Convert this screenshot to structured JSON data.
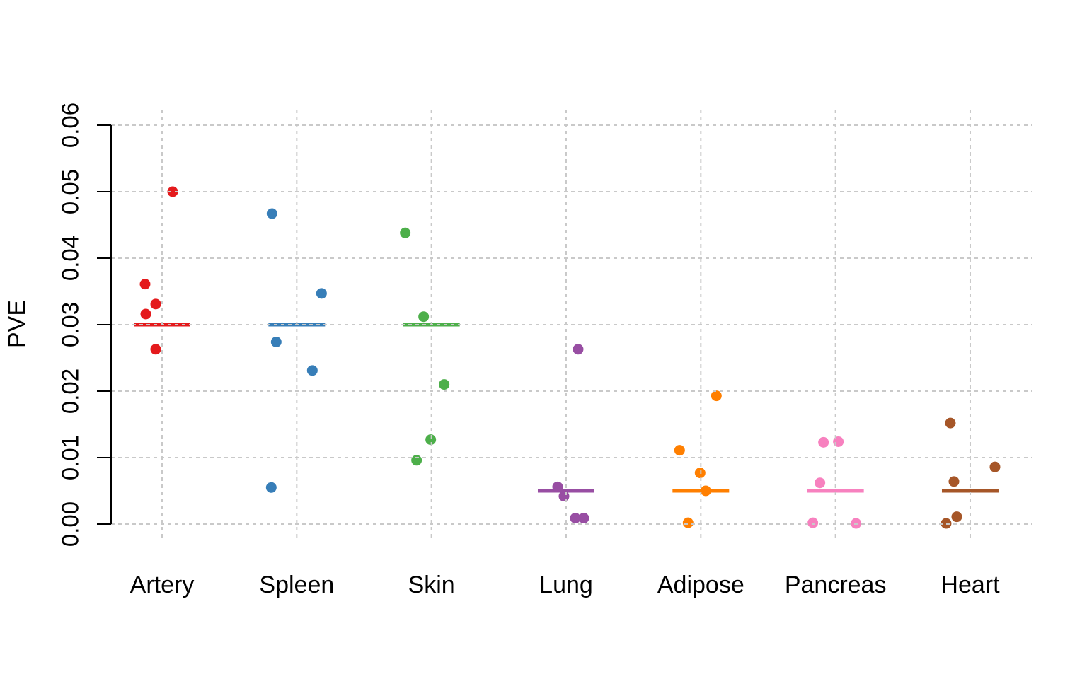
{
  "chart_data": {
    "type": "scatter",
    "subtype": "strip-chart",
    "title": "",
    "xlabel": "",
    "ylabel": "PVE",
    "ylim": [
      0,
      0.06
    ],
    "yticks": [
      0,
      0.01,
      0.02,
      0.03,
      0.04,
      0.05,
      0.06
    ],
    "ytick_labels": [
      "0.00",
      "0.01",
      "0.02",
      "0.03",
      "0.04",
      "0.05",
      "0.06"
    ],
    "grid": true,
    "grid_style": "dashed",
    "grid_color": "#c9c9c9",
    "axis_color": "#000000",
    "legend": "none",
    "categories": [
      "Artery",
      "Spleen",
      "Skin",
      "Lung",
      "Adipose",
      "Pancreas",
      "Heart"
    ],
    "series": [
      {
        "name": "Artery",
        "color": "#e41a1c",
        "line_value": 0.03,
        "points": [
          {
            "value": 0.05,
            "dx": 15
          },
          {
            "value": 0.0361,
            "dx": -24
          },
          {
            "value": 0.0331,
            "dx": -9
          },
          {
            "value": 0.0316,
            "dx": -23
          },
          {
            "value": 0.0263,
            "dx": -9
          }
        ]
      },
      {
        "name": "Spleen",
        "color": "#377eb8",
        "line_value": 0.03,
        "points": [
          {
            "value": 0.0467,
            "dx": -35
          },
          {
            "value": 0.0347,
            "dx": 35
          },
          {
            "value": 0.0274,
            "dx": -29
          },
          {
            "value": 0.0231,
            "dx": 22
          },
          {
            "value": 0.0055,
            "dx": -36
          }
        ]
      },
      {
        "name": "Skin",
        "color": "#4daf4a",
        "line_value": 0.03,
        "points": [
          {
            "value": 0.0438,
            "dx": -37
          },
          {
            "value": 0.0312,
            "dx": -11
          },
          {
            "value": 0.021,
            "dx": 18
          },
          {
            "value": 0.0127,
            "dx": -1
          },
          {
            "value": 0.0096,
            "dx": -21
          }
        ]
      },
      {
        "name": "Lung",
        "color": "#984ea3",
        "line_value": 0.005,
        "points": [
          {
            "value": 0.0263,
            "dx": 17
          },
          {
            "value": 0.0056,
            "dx": -12
          },
          {
            "value": 0.0042,
            "dx": -3
          },
          {
            "value": 0.0009,
            "dx": 13
          },
          {
            "value": 0.0009,
            "dx": 25
          }
        ]
      },
      {
        "name": "Adipose",
        "color": "#ff7f00",
        "line_value": 0.005,
        "points": [
          {
            "value": 0.0193,
            "dx": 22
          },
          {
            "value": 0.0111,
            "dx": -30
          },
          {
            "value": 0.0077,
            "dx": -1
          },
          {
            "value": 0.005,
            "dx": 7
          },
          {
            "value": 0.0002,
            "dx": -18
          }
        ]
      },
      {
        "name": "Pancreas",
        "color": "#f781bf",
        "line_value": 0.005,
        "points": [
          {
            "value": 0.0123,
            "dx": -17
          },
          {
            "value": 0.0124,
            "dx": 4
          },
          {
            "value": 0.0062,
            "dx": -22
          },
          {
            "value": 0.0002,
            "dx": -32
          },
          {
            "value": 0.0001,
            "dx": 29
          }
        ]
      },
      {
        "name": "Heart",
        "color": "#a65628",
        "line_value": 0.005,
        "points": [
          {
            "value": 0.0152,
            "dx": -28
          },
          {
            "value": 0.0086,
            "dx": 35
          },
          {
            "value": 0.0064,
            "dx": -23
          },
          {
            "value": 0.0011,
            "dx": -19
          },
          {
            "value": 0.0001,
            "dx": -34
          }
        ]
      }
    ]
  }
}
